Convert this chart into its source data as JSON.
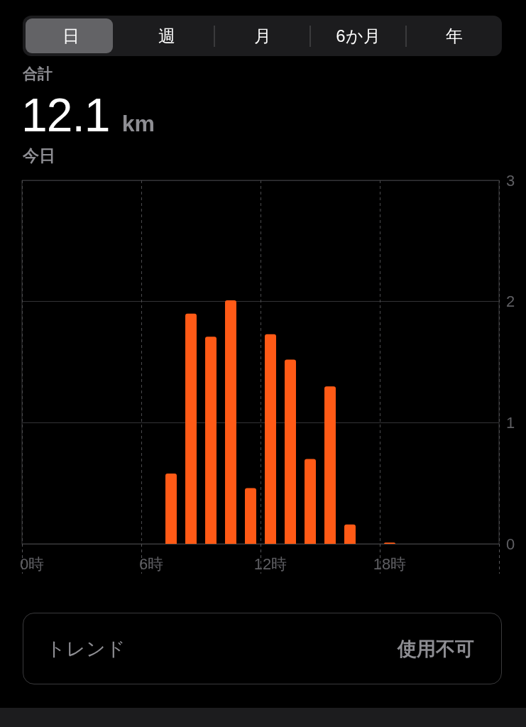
{
  "chart_data": {
    "type": "bar",
    "title": "12.1 km",
    "subtitle": "今日",
    "annotations": [
      "日",
      "週",
      "月",
      "6か月",
      "年",
      "合計",
      "トレンド",
      "使用不可"
    ],
    "categories": [
      "0時",
      null,
      null,
      null,
      null,
      null,
      "6時",
      null,
      null,
      null,
      null,
      null,
      "12時",
      null,
      null,
      null,
      null,
      null,
      "18時",
      null,
      null,
      null,
      null,
      null
    ],
    "values": [
      null,
      null,
      null,
      null,
      null,
      null,
      null,
      0.58,
      1.9,
      1.71,
      2.01,
      0.46,
      1.73,
      1.52,
      0.7,
      1.3,
      0.16,
      null,
      0.01,
      null,
      null,
      null,
      null,
      null
    ],
    "color": "#ff5a16",
    "ylim": [
      0,
      3
    ],
    "yticks": [
      0,
      1,
      2,
      3
    ],
    "grid": true
  }
}
